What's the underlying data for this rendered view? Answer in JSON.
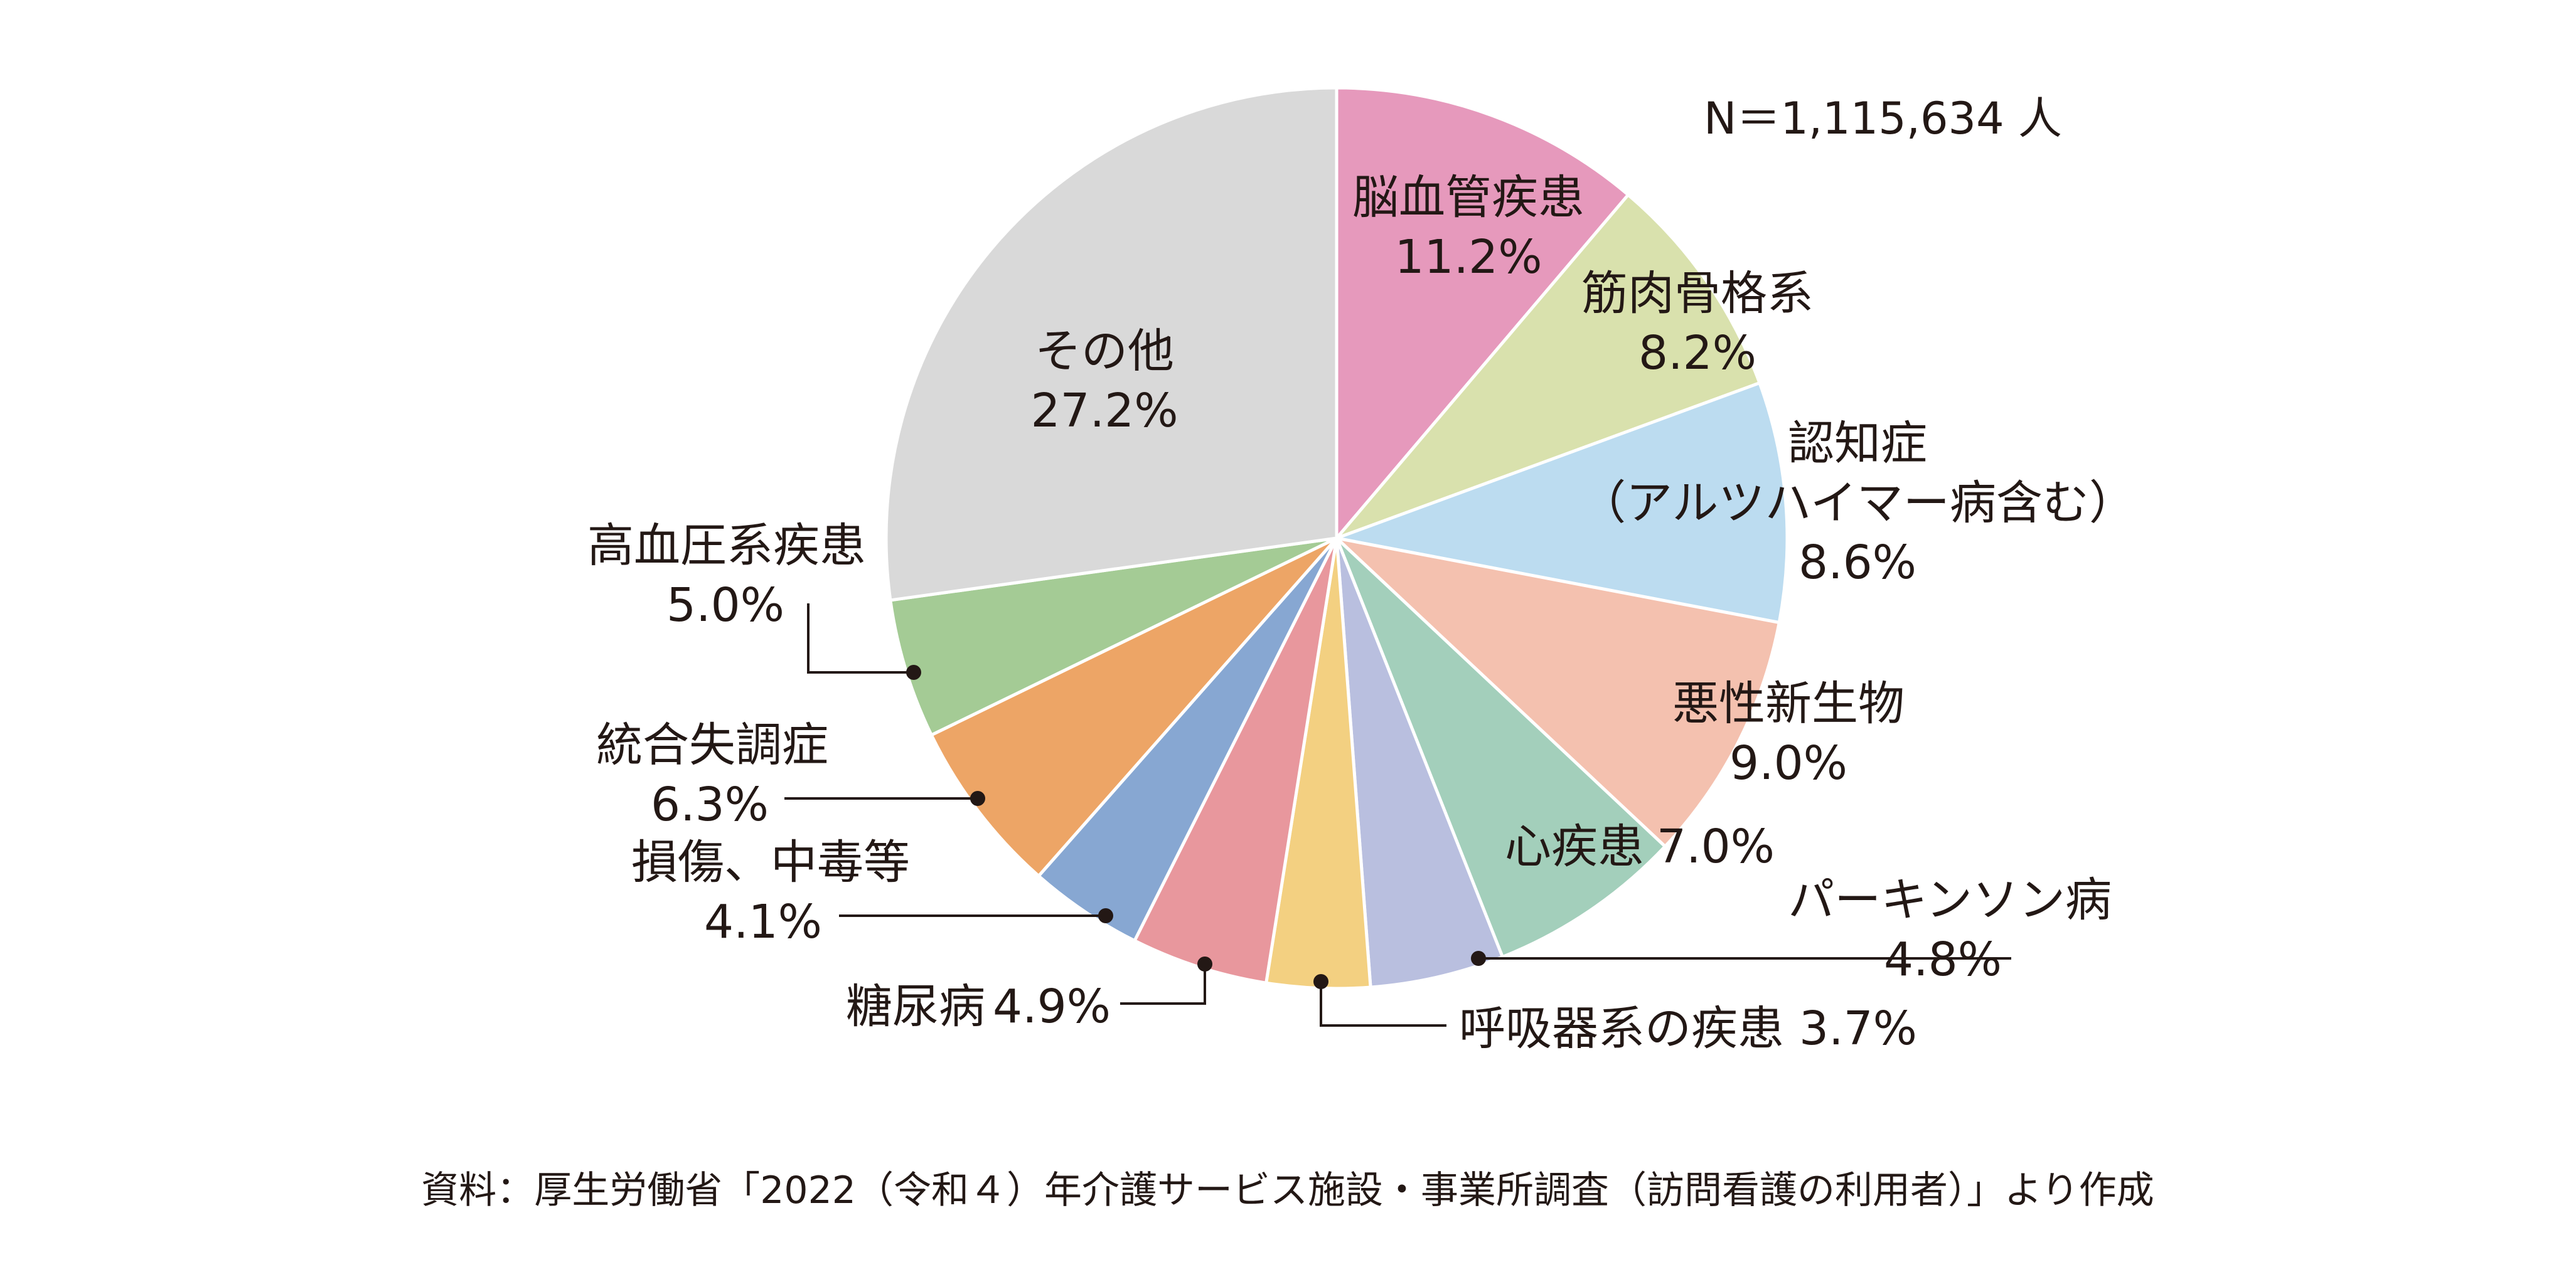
{
  "chart_data": {
    "type": "pie",
    "note": "N＝1,115,634 人",
    "source": "資料：厚生労働省「2022（令和４）年介護サービス施設・事業所調査（訪問看護の利用者）」より作成",
    "slices": [
      {
        "name": "脳血管疾患",
        "value": 11.2,
        "value_label": "11.2%",
        "color": "#e699bc"
      },
      {
        "name": "筋肉骨格系",
        "value": 8.2,
        "value_label": "8.2%",
        "color": "#d9e1ad"
      },
      {
        "name": "認知症",
        "name2": "（アルツハイマー病含む）",
        "value": 8.6,
        "value_label": "8.6%",
        "color": "#bcdcf0"
      },
      {
        "name": "悪性新生物",
        "value": 9.0,
        "value_label": "9.0%",
        "color": "#f4c1af"
      },
      {
        "name": "心疾患",
        "value": 7.0,
        "value_label": "7.0%",
        "color": "#a3cfbb"
      },
      {
        "name": "パーキンソン病",
        "value": 4.8,
        "value_label": "4.8%",
        "color": "#b9bfdf"
      },
      {
        "name": "呼吸器系の疾患",
        "value": 3.7,
        "value_label": "3.7%",
        "color": "#f3d081"
      },
      {
        "name": "糖尿病",
        "value": 4.9,
        "value_label": "4.9%",
        "color": "#e8979d"
      },
      {
        "name": "損傷、中毒等",
        "value": 4.1,
        "value_label": "4.1%",
        "color": "#87a7d2"
      },
      {
        "name": "統合失調症",
        "value": 6.3,
        "value_label": "6.3%",
        "color": "#eda566"
      },
      {
        "name": "高血圧系疾患",
        "value": 5.0,
        "value_label": "5.0%",
        "color": "#a4cb95"
      },
      {
        "name": "その他",
        "value": 27.2,
        "value_label": "27.2%",
        "color": "#d9d9d9"
      }
    ]
  }
}
